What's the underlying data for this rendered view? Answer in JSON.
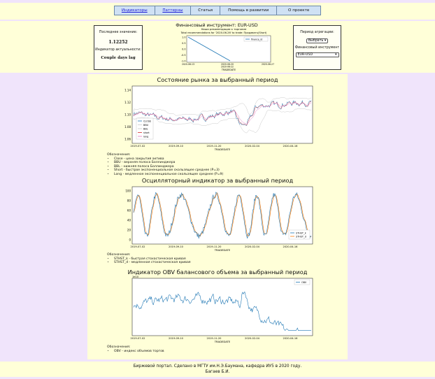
{
  "nav": {
    "items": [
      {
        "label": "Индикаторы",
        "link": true
      },
      {
        "label": "Паттерны",
        "link": true
      },
      {
        "label": "Статьи",
        "link": false
      },
      {
        "label": "Помощь в развитии",
        "link": false
      },
      {
        "label": "О проекте",
        "link": false
      }
    ]
  },
  "instrument": {
    "title": "Финансовый инструмент: EUR-USD",
    "last_label": "Последнее значение:",
    "last_value": "1.12252",
    "indicator_label": "Индикатор актуальности:",
    "lag": "Couple days lag"
  },
  "aggregation": {
    "period_label": "Период агрегации:",
    "period_select": "Выбрать",
    "instrument_label": "Финансовый инструмент",
    "instrument_select": "EUR-USD"
  },
  "reco_chart": {
    "title": "Наши рекомендации к торговле",
    "subtitle": "Total recommendations for '2020-06-26' to trade: Продавать(Short)",
    "legend": "finance_id",
    "ylabel": "",
    "xlabel": "TRADEDATE",
    "yticks": [
      "1.0",
      "0.5",
      "0.0",
      "-0.5",
      "-1.0"
    ],
    "xticks": [
      "2020-06-13",
      "2020-06-20\n2020-06-22",
      "2020-06-27"
    ],
    "chart_data": {
      "type": "line",
      "x": [
        "2020-06-13",
        "2020-06-23"
      ],
      "series": [
        {
          "name": "finance_id",
          "values": [
            1.0,
            -1.0
          ]
        }
      ],
      "ylim": [
        -1.0,
        1.0
      ]
    }
  },
  "market": {
    "title": "Состояние рынка за выбранный период",
    "legend": [
      "CLOSE",
      "BBU",
      "BBL",
      "short",
      "long"
    ],
    "xlabel": "TRADEDATE",
    "yticks": [
      "1.14",
      "1.12",
      "1.10",
      "1.08",
      "1.06"
    ],
    "xticks": [
      "2019-07-02",
      "2019-09-10",
      "2019-11-20",
      "2020-02-04",
      "2020-04-16"
    ],
    "desc_title": "Обозначения:",
    "desc": [
      "Close - цена закрытия актива",
      "BBU - верхняя полоса Боллинджера",
      "BBL - нижняя полоса Боллинджера",
      "Short - быстрое экспоненциальное скользящее среднее (P=3)",
      "Long - медленное экспоненциальное скользящее среднее (P=9)"
    ]
  },
  "oscillator": {
    "title": "Осцилляторный индикатор за выбранный период",
    "legend": [
      "STHST_k",
      "STHST_d"
    ],
    "xlabel": "TRADEDATE",
    "yticks": [
      "100",
      "80",
      "60",
      "40",
      "20",
      "0"
    ],
    "xticks": [
      "2019-07-02",
      "2019-09-10",
      "2019-11-20",
      "2020-02-04",
      "2020-04-16"
    ],
    "desc_title": "Обозначения:",
    "desc": [
      "STHST_k - быстрая стохастическая кривая",
      "STHST_d - медленная стохастическая кривая"
    ]
  },
  "obv": {
    "title": "Индикатор OBV балансового объема за выбранный период",
    "legend": [
      "OBV"
    ],
    "xlabel": "TRADEDATE",
    "scale_label": "1e10",
    "xticks": [
      "2019-07-02",
      "2019-09-10",
      "2019-11-20",
      "2020-02-04",
      "2020-04-16"
    ],
    "desc_title": "Обозначения:",
    "desc": [
      "OBV - индекс объемов торгов"
    ]
  },
  "footer": {
    "line1": "Биржевой портал. Сделано в МГТУ им.Н.Э.Баумана, кафедра ИУ5 в 2020 году.",
    "line2": "Багаев Б.И."
  },
  "colors": {
    "close": "#1f77b4",
    "bbu": "#c8c8c8",
    "bbl": "#c8c8c8",
    "short": "#d62728",
    "long": "#e377c2",
    "k": "#1f77b4",
    "d": "#ff7f0e",
    "obv": "#1f77b4"
  }
}
